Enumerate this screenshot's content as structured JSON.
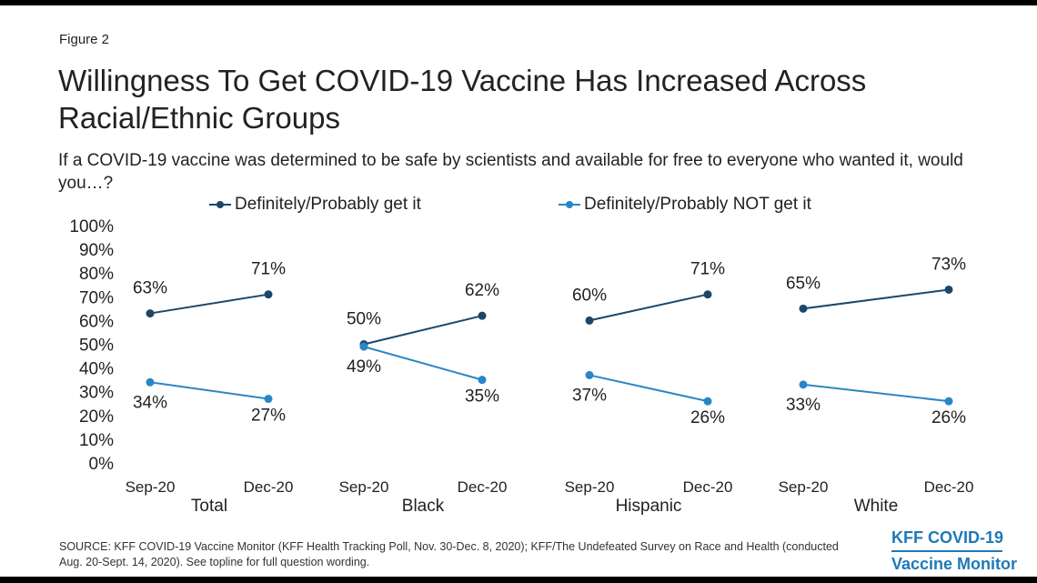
{
  "figure_label": "Figure 2",
  "title": "Willingness To Get COVID-19 Vaccine Has Increased Across Racial/Ethnic Groups",
  "subtitle": "If a COVID-19 vaccine was determined to be safe by scientists and available for free to everyone who wanted it, would you…?",
  "colors": {
    "get": "#1c4769",
    "not_get": "#2a86c6"
  },
  "chart_data": {
    "type": "line",
    "y_ticks": [
      "100%",
      "90%",
      "80%",
      "70%",
      "60%",
      "50%",
      "40%",
      "30%",
      "20%",
      "10%",
      "0%"
    ],
    "ylim": [
      0,
      100
    ],
    "grid": false,
    "legend_position": "top",
    "legend": [
      "Definitely/Probably get it",
      "Definitely/Probably NOT get it"
    ],
    "x": [
      "Sep-20",
      "Dec-20"
    ],
    "panels": [
      {
        "name": "Total",
        "series": [
          {
            "name": "Definitely/Probably get it",
            "values": [
              63,
              71
            ],
            "labels": [
              "63%",
              "71%"
            ]
          },
          {
            "name": "Definitely/Probably NOT get it",
            "values": [
              34,
              27
            ],
            "labels": [
              "34%",
              "27%"
            ]
          }
        ]
      },
      {
        "name": "Black",
        "series": [
          {
            "name": "Definitely/Probably get it",
            "values": [
              50,
              62
            ],
            "labels": [
              "50%",
              "62%"
            ]
          },
          {
            "name": "Definitely/Probably NOT get it",
            "values": [
              49,
              35
            ],
            "labels": [
              "49%",
              "35%"
            ]
          }
        ]
      },
      {
        "name": "Hispanic",
        "series": [
          {
            "name": "Definitely/Probably get it",
            "values": [
              60,
              71
            ],
            "labels": [
              "60%",
              "71%"
            ]
          },
          {
            "name": "Definitely/Probably NOT get it",
            "values": [
              37,
              26
            ],
            "labels": [
              "37%",
              "26%"
            ]
          }
        ]
      },
      {
        "name": "White",
        "series": [
          {
            "name": "Definitely/Probably get it",
            "values": [
              65,
              73
            ],
            "labels": [
              "65%",
              "73%"
            ]
          },
          {
            "name": "Definitely/Probably NOT get it",
            "values": [
              33,
              26
            ],
            "labels": [
              "33%",
              "26%"
            ]
          }
        ]
      }
    ]
  },
  "source": "SOURCE: KFF COVID-19 Vaccine Monitor (KFF Health Tracking Poll, Nov. 30-Dec. 8, 2020); KFF/The Undefeated Survey on Race and Health (conducted Aug. 20-Sept. 14, 2020). See topline for full question wording.",
  "logo": {
    "line1": "KFF COVID-19",
    "line2": "Vaccine Monitor"
  }
}
